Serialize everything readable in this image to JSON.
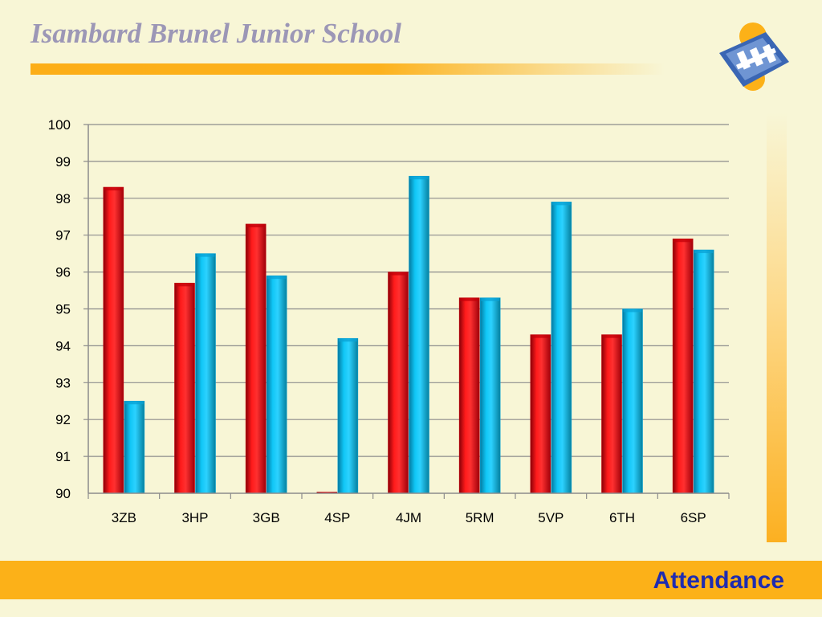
{
  "header": {
    "title": "Isambard Brunel Junior School"
  },
  "footer": {
    "label": "Attendance"
  },
  "logo": {
    "icon": "school-logo-icon"
  },
  "colors": {
    "series_red": "#e8000d",
    "series_blue": "#0db4ea",
    "accent": "#fcb118",
    "title": "#9c97b6",
    "footer_text": "#1f2cb0"
  },
  "chart_data": {
    "type": "bar",
    "title": "",
    "xlabel": "",
    "ylabel": "",
    "categories": [
      "3ZB",
      "3HP",
      "3GB",
      "4SP",
      "4JM",
      "5RM",
      "5VP",
      "6TH",
      "6SP"
    ],
    "series": [
      {
        "values": [
          98.3,
          95.7,
          97.3,
          90.0,
          96.0,
          95.3,
          94.3,
          94.3,
          96.9
        ]
      },
      {
        "values": [
          92.5,
          96.5,
          95.9,
          94.2,
          98.6,
          95.3,
          97.9,
          95.0,
          96.6
        ]
      }
    ],
    "ylim": [
      90,
      100
    ],
    "yticks": [
      "90",
      "91",
      "92",
      "93",
      "94",
      "95",
      "96",
      "97",
      "98",
      "99",
      "100"
    ],
    "grid": true,
    "legend": "none"
  }
}
